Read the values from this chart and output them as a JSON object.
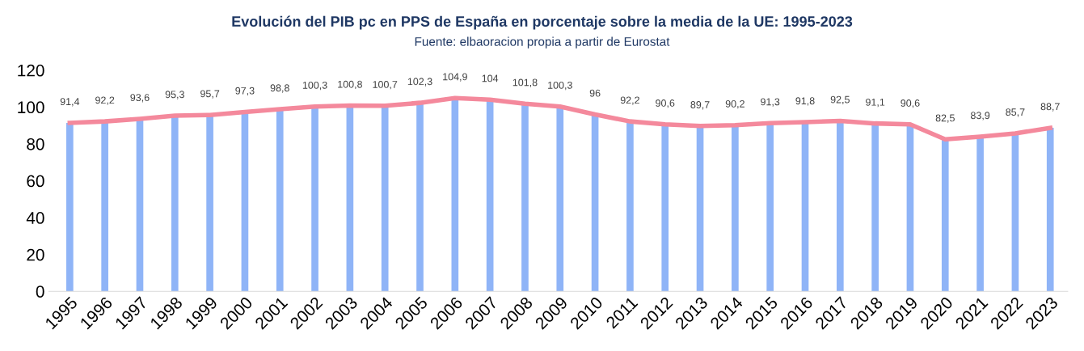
{
  "chart_data": {
    "type": "bar",
    "title": "Evolución del PIB pc en PPS de España en porcentaje sobre la media de la UE: 1995-2023",
    "subtitle": "Fuente: elbaoracion propia a partir de Eurostat",
    "categories": [
      "1995",
      "1996",
      "1997",
      "1998",
      "1999",
      "2000",
      "2001",
      "2002",
      "2003",
      "2004",
      "2005",
      "2006",
      "2007",
      "2008",
      "2009",
      "2010",
      "2011",
      "2012",
      "2013",
      "2014",
      "2015",
      "2016",
      "2017",
      "2018",
      "2019",
      "2020",
      "2021",
      "2022",
      "2023"
    ],
    "series": [
      {
        "color": "#8fb4f7",
        "values": [
          91.4,
          92.2,
          93.6,
          95.3,
          95.7,
          97.3,
          98.8,
          100.3,
          100.8,
          100.7,
          102.3,
          104.9,
          104,
          101.8,
          100.3,
          96,
          92.2,
          90.6,
          89.7,
          90.2,
          91.3,
          91.8,
          92.5,
          91.1,
          90.6,
          82.5,
          83.9,
          85.7,
          88.7
        ]
      },
      {
        "type": "line",
        "color": "#f4899c",
        "values": [
          91.4,
          92.2,
          93.6,
          95.3,
          95.7,
          97.3,
          98.8,
          100.3,
          100.8,
          100.7,
          102.3,
          104.9,
          104,
          101.8,
          100.3,
          96,
          92.2,
          90.6,
          89.7,
          90.2,
          91.3,
          91.8,
          92.5,
          91.1,
          90.6,
          82.5,
          83.9,
          85.7,
          88.7
        ],
        "value_labels": [
          "91,4",
          "92,2",
          "93,6",
          "95,3",
          "95,7",
          "97,3",
          "98,8",
          "100,3",
          "100,8",
          "100,7",
          "102,3",
          "104,9",
          "104",
          "101,8",
          "100,3",
          "96",
          "92,2",
          "90,6",
          "89,7",
          "90,2",
          "91,3",
          "91,8",
          "92,5",
          "91,1",
          "90,6",
          "82,5",
          "83,9",
          "85,7",
          "88,7"
        ]
      }
    ],
    "ylim": [
      0,
      120
    ],
    "yticks": [
      0,
      20,
      40,
      60,
      80,
      100,
      120
    ],
    "grid": false,
    "legend": false,
    "marker": "none",
    "line_style": "solid"
  }
}
